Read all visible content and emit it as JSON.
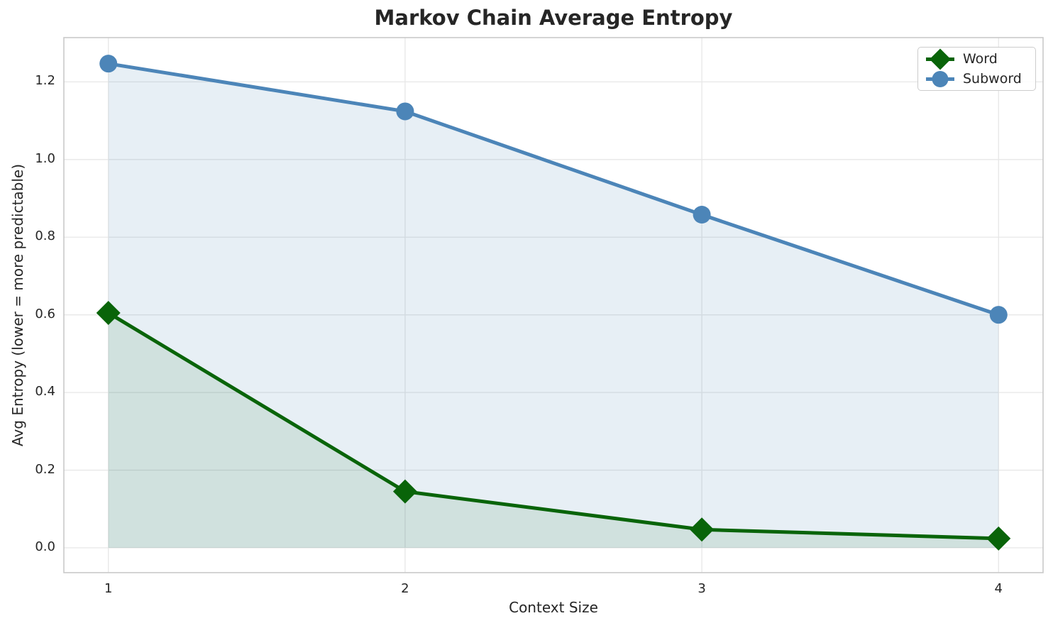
{
  "chart_data": {
    "type": "line",
    "title": "Markov Chain Average Entropy",
    "xlabel": "Context Size",
    "ylabel": "Avg Entropy (lower = more predictable)",
    "x": [
      1,
      2,
      3,
      4
    ],
    "series": [
      {
        "name": "Word",
        "values": [
          0.605,
          0.145,
          0.047,
          0.024
        ],
        "color": "#096409",
        "marker": "diamond",
        "fill_color": "rgba(0,100,0,0.10)"
      },
      {
        "name": "Subword",
        "values": [
          1.247,
          1.124,
          0.858,
          0.6
        ],
        "color": "#4c85b8",
        "marker": "circle",
        "fill_color": "rgba(70,130,180,0.13)"
      }
    ],
    "xlim": [
      0.85,
      4.15
    ],
    "ylim": [
      -0.064,
      1.314
    ],
    "xticks": [
      1,
      2,
      3,
      4
    ],
    "xtick_labels": [
      "1",
      "2",
      "3",
      "4"
    ],
    "yticks": [
      0.0,
      0.2,
      0.4,
      0.6,
      0.8,
      1.0,
      1.2
    ],
    "ytick_labels": [
      "0.0",
      "0.2",
      "0.4",
      "0.6",
      "0.8",
      "1.0",
      "1.2"
    ],
    "grid": true,
    "fill_to_zero": true,
    "legend": {
      "position": "top-right",
      "entries": [
        "Word",
        "Subword"
      ]
    },
    "style": {
      "grid_color": "#e7e7e7",
      "spine_color": "#c9c9c9",
      "text_color": "#262626",
      "line_width": 5
    }
  }
}
